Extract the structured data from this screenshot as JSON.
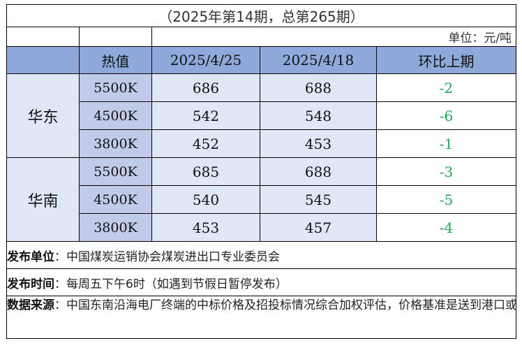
{
  "title": "（2025年第14期，总第265期）",
  "unit": "单位：元/吨",
  "headers": {
    "heat": "热值",
    "date_current": "2025/4/25",
    "date_previous": "2025/4/18",
    "change": "环比上期"
  },
  "regions": [
    {
      "name": "华东",
      "rows": [
        {
          "heat": "5500K",
          "current": "686",
          "previous": "688",
          "change": "-2"
        },
        {
          "heat": "4500K",
          "current": "542",
          "previous": "548",
          "change": "-6"
        },
        {
          "heat": "3800K",
          "current": "452",
          "previous": "453",
          "change": "-1"
        }
      ]
    },
    {
      "name": "华南",
      "rows": [
        {
          "heat": "5500K",
          "current": "685",
          "previous": "688",
          "change": "-3"
        },
        {
          "heat": "4500K",
          "current": "540",
          "previous": "545",
          "change": "-5"
        },
        {
          "heat": "3800K",
          "current": "453",
          "previous": "457",
          "change": "-4"
        }
      ]
    }
  ],
  "footer": {
    "publisher_label": "发布单位",
    "publisher_value": "：中国煤炭运销协会煤炭进出口专业委员会",
    "time_label": "发布时间",
    "time_value": "：每周五下午6时（如遇到节假日暂停发布）",
    "source_label": "数据来源",
    "source_value": "：中国东南沿海电厂终端的中标价格及招投标情况综合加权评估，价格基准是送到港口或者电厂码头的“到岸舱底价”"
  },
  "colors": {
    "header_bg": "#8eaadb",
    "heat_bg": "#bfcbe8",
    "data_bg": "#dfe6f5",
    "change_text": "#22a55b"
  }
}
